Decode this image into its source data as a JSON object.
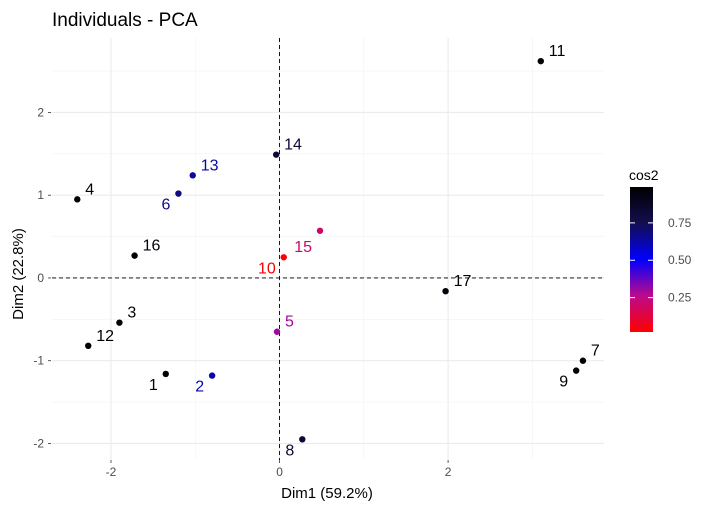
{
  "chart_data": {
    "type": "scatter",
    "title": "Individuals - PCA",
    "xlabel": "Dim1 (59.2%)",
    "ylabel": "Dim2 (22.8%)",
    "xlim": [
      -2.7,
      3.85
    ],
    "ylim": [
      -2.2,
      2.9
    ],
    "xticks": [
      -2,
      0,
      2
    ],
    "yticks": [
      -2,
      -1,
      0,
      1,
      2
    ],
    "grid": true,
    "ref_lines": {
      "x": 0,
      "y": 0,
      "style": "dashed"
    },
    "legend": {
      "title": "cos2",
      "placement": "right",
      "ticks": [
        0.25,
        0.5,
        0.75
      ],
      "tick_labels": [
        "0.25",
        "0.50",
        "0.75"
      ],
      "range": [
        0.02,
        0.99
      ],
      "colors": [
        "#FF0000",
        "#BC0A8C",
        "#0000FF",
        "#140E50",
        "#000000"
      ]
    },
    "points": [
      {
        "label": "1",
        "x": -1.35,
        "y": -1.16,
        "cos2": 0.97,
        "label_pos": "below-left"
      },
      {
        "label": "2",
        "x": -0.8,
        "y": -1.18,
        "cos2": 0.62,
        "label_pos": "below-left"
      },
      {
        "label": "3",
        "x": -1.9,
        "y": -0.54,
        "cos2": 0.98,
        "label_pos": "above-right"
      },
      {
        "label": "4",
        "x": -2.4,
        "y": 0.95,
        "cos2": 0.97,
        "label_pos": "above-right"
      },
      {
        "label": "5",
        "x": -0.03,
        "y": -0.65,
        "cos2": 0.3,
        "label_pos": "above-right"
      },
      {
        "label": "6",
        "x": -1.2,
        "y": 1.02,
        "cos2": 0.68,
        "label_pos": "below-left"
      },
      {
        "label": "7",
        "x": 3.6,
        "y": -1.0,
        "cos2": 0.98,
        "label_pos": "above-right"
      },
      {
        "label": "8",
        "x": 0.27,
        "y": -1.95,
        "cos2": 0.83,
        "label_pos": "below-left"
      },
      {
        "label": "9",
        "x": 3.52,
        "y": -1.12,
        "cos2": 0.98,
        "label_pos": "below-left"
      },
      {
        "label": "10",
        "x": 0.05,
        "y": 0.25,
        "cos2": 0.03,
        "label_pos": "below-left"
      },
      {
        "label": "11",
        "x": 3.1,
        "y": 2.62,
        "cos2": 0.97,
        "label_pos": "above-right"
      },
      {
        "label": "12",
        "x": -2.27,
        "y": -0.82,
        "cos2": 0.98,
        "label_pos": "above-right"
      },
      {
        "label": "13",
        "x": -1.03,
        "y": 1.24,
        "cos2": 0.64,
        "label_pos": "above-right"
      },
      {
        "label": "14",
        "x": -0.04,
        "y": 1.49,
        "cos2": 0.83,
        "label_pos": "above-right"
      },
      {
        "label": "15",
        "x": 0.48,
        "y": 0.57,
        "cos2": 0.2,
        "label_pos": "below-left-near"
      },
      {
        "label": "16",
        "x": -1.72,
        "y": 0.27,
        "cos2": 0.97,
        "label_pos": "above-right"
      },
      {
        "label": "17",
        "x": 1.97,
        "y": -0.16,
        "cos2": 0.96,
        "label_pos": "above-right"
      }
    ]
  }
}
